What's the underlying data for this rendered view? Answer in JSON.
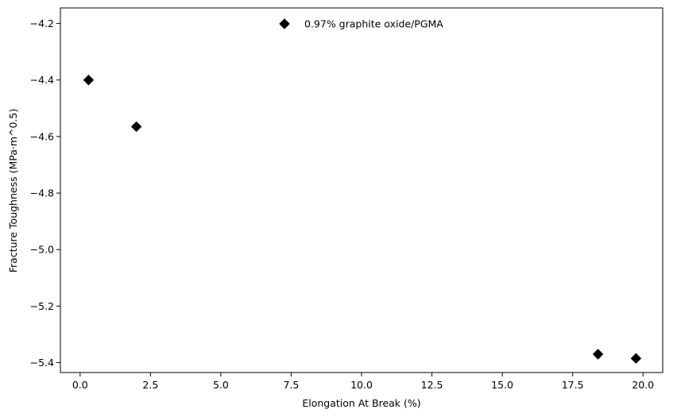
{
  "chart_data": {
    "type": "scatter",
    "title": "",
    "xlabel": "Elongation At Break (%)",
    "ylabel": "Fracture Toughness (MPa·m^0.5)",
    "xlim": [
      -0.7,
      20.7
    ],
    "ylim": [
      -5.435,
      -4.145
    ],
    "xticks": [
      0.0,
      2.5,
      5.0,
      7.5,
      10.0,
      12.5,
      15.0,
      17.5,
      20.0
    ],
    "xtick_labels": [
      "0.0",
      "2.5",
      "5.0",
      "7.5",
      "10.0",
      "12.5",
      "15.0",
      "17.5",
      "20.0"
    ],
    "yticks": [
      -4.2,
      -4.4,
      -4.6,
      -4.8,
      -5.0,
      -5.2,
      -5.4
    ],
    "ytick_labels": [
      "−4.2",
      "−4.4",
      "−4.6",
      "−4.8",
      "−5.0",
      "−5.2",
      "−5.4"
    ],
    "grid": false,
    "legend": "top-center",
    "series": [
      {
        "name": "0.97% graphite oxide/PGMA",
        "marker": "diamond",
        "color": "#000000",
        "points": [
          {
            "x": 0.3,
            "y": -4.4
          },
          {
            "x": 2.0,
            "y": -4.565
          },
          {
            "x": 18.4,
            "y": -5.37
          },
          {
            "x": 19.75,
            "y": -5.385
          }
        ]
      }
    ]
  }
}
